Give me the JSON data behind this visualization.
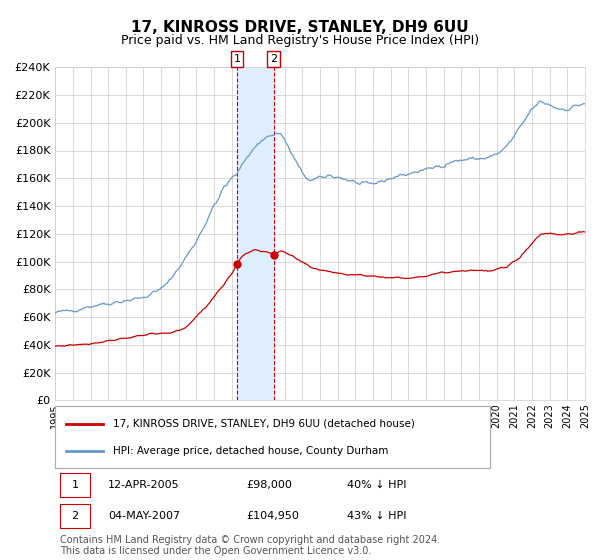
{
  "title": "17, KINROSS DRIVE, STANLEY, DH9 6UU",
  "subtitle": "Price paid vs. HM Land Registry's House Price Index (HPI)",
  "title_fontsize": 11,
  "subtitle_fontsize": 9,
  "legend_line1": "17, KINROSS DRIVE, STANLEY, DH9 6UU (detached house)",
  "legend_line2": "HPI: Average price, detached house, County Durham",
  "transaction1_label": "1",
  "transaction1_date": "12-APR-2005",
  "transaction1_price": "£98,000",
  "transaction1_pct": "40% ↓ HPI",
  "transaction1_year": 2005.292,
  "transaction1_value": 98000,
  "transaction2_label": "2",
  "transaction2_date": "04-MAY-2007",
  "transaction2_price": "£104,950",
  "transaction2_pct": "43% ↓ HPI",
  "transaction2_year": 2007.375,
  "transaction2_value": 104950,
  "x_start_year": 1995,
  "x_end_year": 2025,
  "ylim_min": 0,
  "ylim_max": 240000,
  "hpi_color": "#6699cc",
  "price_color": "#cc0000",
  "shade_color": "#ddeeff",
  "grid_color": "#cccccc",
  "bg_color": "#ffffff",
  "vline_color": "#cc0000",
  "marker_color": "#cc0000",
  "footnote_line1": "Contains HM Land Registry data © Crown copyright and database right 2024.",
  "footnote_line2": "This data is licensed under the Open Government Licence v3.0.",
  "footnote_fontsize": 7,
  "hpi_anchors_x": [
    1995.0,
    1996.0,
    1997.0,
    1998.0,
    1999.0,
    2000.0,
    2001.0,
    2002.0,
    2003.0,
    2004.0,
    2004.5,
    2005.0,
    2005.3,
    2005.8,
    2006.5,
    2007.0,
    2007.4,
    2007.8,
    2008.5,
    2009.0,
    2009.5,
    2010.0,
    2010.5,
    2011.0,
    2011.5,
    2012.0,
    2012.5,
    2013.0,
    2013.5,
    2014.0,
    2014.5,
    2015.0,
    2015.5,
    2016.0,
    2016.5,
    2017.0,
    2017.5,
    2018.0,
    2018.5,
    2019.0,
    2019.5,
    2020.0,
    2020.5,
    2021.0,
    2021.5,
    2022.0,
    2022.5,
    2023.0,
    2023.5,
    2024.0,
    2024.5,
    2024.9
  ],
  "hpi_anchors_y": [
    63000,
    65000,
    68000,
    70000,
    72000,
    74000,
    80000,
    95000,
    115000,
    140000,
    152000,
    160000,
    163000,
    175000,
    185000,
    190000,
    192000,
    192000,
    175000,
    163000,
    158000,
    160000,
    162000,
    161000,
    159000,
    157000,
    155000,
    156000,
    158000,
    160000,
    162000,
    163000,
    165000,
    166000,
    168000,
    170000,
    172000,
    173000,
    174000,
    174000,
    175000,
    177000,
    182000,
    190000,
    200000,
    210000,
    215000,
    213000,
    210000,
    210000,
    212000,
    214000
  ],
  "price_anchors_x": [
    1995.0,
    1996.0,
    1997.0,
    1997.5,
    1998.0,
    1998.5,
    1999.0,
    1999.5,
    2000.0,
    2000.5,
    2001.0,
    2001.5,
    2002.0,
    2002.5,
    2003.0,
    2003.5,
    2004.0,
    2004.5,
    2005.0,
    2005.292,
    2005.5,
    2005.8,
    2006.0,
    2006.5,
    2007.0,
    2007.375,
    2007.8,
    2008.0,
    2008.5,
    2009.0,
    2009.5,
    2010.0,
    2010.5,
    2011.0,
    2011.5,
    2012.0,
    2012.5,
    2013.0,
    2013.5,
    2014.0,
    2014.5,
    2015.0,
    2015.5,
    2016.0,
    2016.5,
    2017.0,
    2017.5,
    2018.0,
    2018.5,
    2019.0,
    2019.5,
    2020.0,
    2020.5,
    2021.0,
    2021.5,
    2022.0,
    2022.5,
    2023.0,
    2023.5,
    2024.0,
    2024.5,
    2024.9
  ],
  "price_anchors_y": [
    39000,
    40000,
    41000,
    42000,
    43000,
    44000,
    45000,
    46000,
    47000,
    47500,
    48000,
    48500,
    50000,
    54000,
    60000,
    67000,
    75000,
    83000,
    91000,
    98000,
    103000,
    106000,
    107000,
    108000,
    107500,
    104950,
    107000,
    106500,
    103000,
    99000,
    96000,
    94000,
    93000,
    92000,
    91000,
    90500,
    90000,
    89500,
    89000,
    88500,
    88000,
    88500,
    89000,
    90000,
    91000,
    92000,
    93000,
    93500,
    94000,
    93500,
    93000,
    94000,
    96000,
    100000,
    106000,
    113000,
    120000,
    120500,
    119500,
    120000,
    120500,
    121000
  ]
}
